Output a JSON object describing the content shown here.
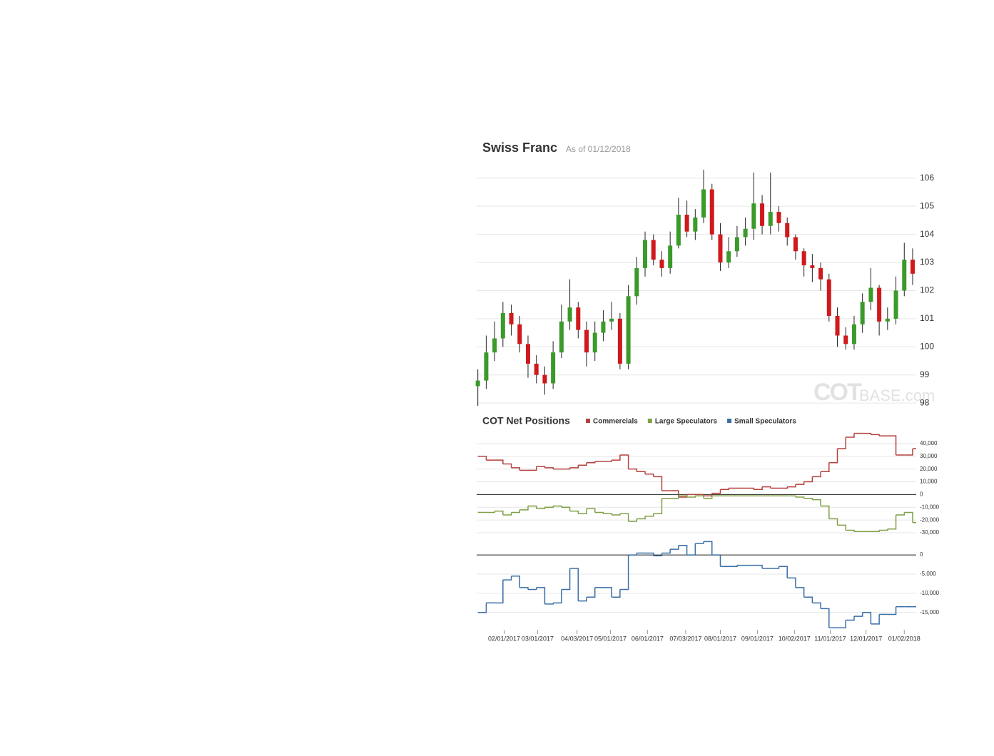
{
  "chart_data": [
    {
      "type": "candlestick",
      "title": "Swiss Franc",
      "subtitle": "As of 01/12/2018",
      "watermark": {
        "bold": "COT",
        "light": "BASE.com"
      },
      "up_color": "#3a9a2a",
      "down_color": "#d0191c",
      "grid": true,
      "xlim": [
        "2017-01-09",
        "2018-01-12"
      ],
      "x": [
        "2017-01-10",
        "2017-01-17",
        "2017-01-24",
        "2017-01-31",
        "2017-02-07",
        "2017-02-14",
        "2017-02-21",
        "2017-02-28",
        "2017-03-07",
        "2017-03-14",
        "2017-03-21",
        "2017-03-28",
        "2017-04-04",
        "2017-04-11",
        "2017-04-18",
        "2017-04-25",
        "2017-05-02",
        "2017-05-09",
        "2017-05-16",
        "2017-05-23",
        "2017-05-30",
        "2017-06-06",
        "2017-06-13",
        "2017-06-20",
        "2017-06-27",
        "2017-07-04",
        "2017-07-11",
        "2017-07-18",
        "2017-07-25",
        "2017-08-01",
        "2017-08-08",
        "2017-08-15",
        "2017-08-22",
        "2017-08-29",
        "2017-09-05",
        "2017-09-12",
        "2017-09-19",
        "2017-09-26",
        "2017-10-03",
        "2017-10-10",
        "2017-10-17",
        "2017-10-24",
        "2017-10-31",
        "2017-11-07",
        "2017-11-14",
        "2017-11-21",
        "2017-11-28",
        "2017-12-05",
        "2017-12-12",
        "2017-12-19",
        "2017-12-26",
        "2018-01-02",
        "2018-01-09"
      ],
      "open": [
        98.6,
        98.8,
        99.8,
        100.3,
        101.2,
        100.8,
        100.1,
        99.4,
        99.0,
        98.7,
        99.8,
        100.9,
        101.4,
        100.6,
        99.8,
        100.5,
        100.9,
        101.0,
        99.4,
        101.8,
        102.8,
        103.8,
        103.1,
        102.8,
        103.6,
        104.7,
        104.1,
        104.6,
        105.6,
        104.0,
        103.0,
        103.4,
        103.9,
        104.2,
        105.1,
        104.3,
        104.8,
        104.4,
        103.9,
        103.4,
        102.9,
        102.8,
        102.4,
        101.1,
        100.4,
        100.1,
        100.8,
        101.6,
        102.1,
        100.9,
        101.0,
        102.0,
        103.1
      ],
      "high": [
        99.2,
        100.4,
        100.9,
        101.6,
        101.5,
        101.1,
        100.4,
        99.7,
        99.3,
        100.2,
        101.5,
        102.4,
        101.6,
        100.9,
        100.9,
        101.3,
        101.6,
        101.2,
        102.2,
        103.2,
        104.1,
        104.0,
        103.4,
        104.1,
        105.3,
        105.2,
        104.9,
        106.3,
        105.8,
        104.4,
        103.9,
        104.3,
        104.6,
        106.2,
        105.4,
        106.2,
        105.0,
        104.6,
        104.0,
        103.5,
        103.3,
        103.0,
        102.6,
        101.4,
        100.7,
        101.1,
        101.9,
        102.8,
        102.2,
        101.4,
        102.5,
        103.7,
        103.5
      ],
      "low": [
        97.9,
        98.5,
        99.5,
        100.0,
        100.4,
        99.8,
        98.9,
        98.7,
        98.3,
        98.5,
        99.6,
        100.6,
        100.3,
        99.3,
        99.5,
        100.2,
        100.6,
        99.2,
        99.2,
        101.5,
        102.5,
        102.9,
        102.5,
        102.6,
        103.5,
        103.9,
        103.8,
        104.4,
        103.8,
        102.7,
        102.8,
        103.2,
        103.6,
        103.8,
        104.0,
        104.0,
        104.1,
        103.6,
        103.1,
        102.5,
        102.3,
        102.0,
        100.9,
        100.0,
        99.9,
        99.9,
        100.5,
        101.3,
        100.4,
        100.6,
        100.8,
        101.8,
        102.2
      ],
      "close": [
        98.8,
        99.8,
        100.3,
        101.2,
        100.8,
        100.1,
        99.4,
        99.0,
        98.7,
        99.8,
        100.9,
        101.4,
        100.6,
        99.8,
        100.5,
        100.9,
        101.0,
        99.4,
        101.8,
        102.8,
        103.8,
        103.1,
        102.8,
        103.6,
        104.7,
        104.1,
        104.6,
        105.6,
        104.0,
        103.0,
        103.4,
        103.9,
        104.2,
        105.1,
        104.3,
        104.8,
        104.4,
        103.9,
        103.4,
        102.9,
        102.8,
        102.4,
        101.1,
        100.4,
        100.1,
        100.8,
        101.6,
        102.1,
        100.9,
        101.0,
        102.0,
        103.1,
        102.6
      ],
      "ylim": [
        97.8,
        106.4
      ],
      "yticks": [
        98,
        99,
        100,
        101,
        102,
        103,
        104,
        105,
        106
      ]
    },
    {
      "type": "line",
      "step": true,
      "title": "COT Net Positions",
      "grid": true,
      "xlim": [
        "2017-01-09",
        "2018-01-12"
      ],
      "xticks": [
        {
          "value": "2017-02-01",
          "label": "02/01/2017"
        },
        {
          "value": "2017-03-01",
          "label": "03/01/2017"
        },
        {
          "value": "2017-04-03",
          "label": "04/03/2017"
        },
        {
          "value": "2017-05-01",
          "label": "05/01/2017"
        },
        {
          "value": "2017-06-01",
          "label": "06/01/2017"
        },
        {
          "value": "2017-07-03",
          "label": "07/03/2017"
        },
        {
          "value": "2017-08-01",
          "label": "08/01/2017"
        },
        {
          "value": "2017-09-01",
          "label": "09/01/2017"
        },
        {
          "value": "2017-10-02",
          "label": "10/02/2017"
        },
        {
          "value": "2017-11-01",
          "label": "11/01/2017"
        },
        {
          "value": "2017-12-01",
          "label": "12/01/2017"
        },
        {
          "value": "2018-01-02",
          "label": "01/02/2018"
        }
      ],
      "x": [
        "2017-01-10",
        "2017-01-17",
        "2017-01-24",
        "2017-01-31",
        "2017-02-07",
        "2017-02-14",
        "2017-02-21",
        "2017-02-28",
        "2017-03-07",
        "2017-03-14",
        "2017-03-21",
        "2017-03-28",
        "2017-04-04",
        "2017-04-11",
        "2017-04-18",
        "2017-04-25",
        "2017-05-02",
        "2017-05-09",
        "2017-05-16",
        "2017-05-23",
        "2017-05-30",
        "2017-06-06",
        "2017-06-13",
        "2017-06-20",
        "2017-06-27",
        "2017-07-04",
        "2017-07-11",
        "2017-07-18",
        "2017-07-25",
        "2017-08-01",
        "2017-08-08",
        "2017-08-15",
        "2017-08-22",
        "2017-08-29",
        "2017-09-05",
        "2017-09-12",
        "2017-09-19",
        "2017-09-26",
        "2017-10-03",
        "2017-10-10",
        "2017-10-17",
        "2017-10-24",
        "2017-10-31",
        "2017-11-07",
        "2017-11-14",
        "2017-11-21",
        "2017-11-28",
        "2017-12-05",
        "2017-12-12",
        "2017-12-19",
        "2017-12-26",
        "2018-01-02",
        "2018-01-09"
      ],
      "ylim": [
        -35000,
        50000
      ],
      "yticks": [
        {
          "value": 40000,
          "label": "40,000"
        },
        {
          "value": 30000,
          "label": "30,000"
        },
        {
          "value": 20000,
          "label": "20,000"
        },
        {
          "value": 10000,
          "label": "10,000"
        },
        0,
        {
          "value": -10000,
          "label": "-10,000"
        },
        {
          "value": -20000,
          "label": "-20,000"
        },
        {
          "value": -30000,
          "label": "-30,000"
        }
      ],
      "y2lim": [
        -21000,
        3000
      ],
      "y2ticks": [
        0,
        {
          "value": -5000,
          "label": "-5,000"
        },
        {
          "value": -10000,
          "label": "-10,000"
        },
        {
          "value": -15000,
          "label": "-15,000"
        }
      ],
      "series": [
        {
          "name": "Commercials",
          "color": "#b5413d",
          "values": [
            30000,
            27000,
            27000,
            24000,
            21000,
            19000,
            19000,
            22000,
            21000,
            20000,
            20000,
            21000,
            23000,
            25000,
            26000,
            26000,
            27000,
            31000,
            20000,
            18000,
            16000,
            14000,
            3000,
            3000,
            -2000,
            0,
            0,
            -1000,
            1000,
            4000,
            5000,
            5000,
            5000,
            4000,
            6000,
            5000,
            5000,
            6000,
            8000,
            10000,
            14000,
            18000,
            25000,
            36000,
            45000,
            48000,
            48000,
            47000,
            46000,
            46000,
            31000,
            31000,
            36000
          ]
        },
        {
          "name": "Large Speculators",
          "color": "#7fa046",
          "values": [
            -14000,
            -14000,
            -13000,
            -16000,
            -14000,
            -12000,
            -9000,
            -11000,
            -10000,
            -9000,
            -10000,
            -13000,
            -15000,
            -11000,
            -14000,
            -15000,
            -16000,
            -15000,
            -21000,
            -19000,
            -17000,
            -15000,
            -3000,
            -3000,
            -1000,
            -2000,
            -1000,
            -3000,
            -1000,
            -1000,
            -1000,
            -1000,
            -1000,
            -1000,
            -1000,
            -1000,
            -1000,
            -1000,
            -2000,
            -3000,
            -4000,
            -9000,
            -19000,
            -24000,
            -28000,
            -29000,
            -29000,
            -29000,
            -28000,
            -27000,
            -16000,
            -14000,
            -22000
          ]
        },
        {
          "name": "Small Speculators",
          "color": "#3b6ea5",
          "axis": "y2",
          "values": [
            -15000,
            -12500,
            -12500,
            -6500,
            -5500,
            -8500,
            -9000,
            -8500,
            -12800,
            -12500,
            -9000,
            -3500,
            -12000,
            -11000,
            -8500,
            -8500,
            -11000,
            -9000,
            0,
            500,
            500,
            -200,
            500,
            1500,
            2500,
            0,
            3000,
            3500,
            0,
            -3000,
            -3000,
            -2700,
            -2700,
            -2700,
            -3500,
            -3500,
            -3000,
            -6000,
            -8500,
            -11000,
            -12500,
            -14000,
            -19000,
            -19000,
            -17000,
            -16000,
            -15000,
            -18000,
            -15500,
            -15500,
            -13500,
            -13500,
            -13500
          ]
        }
      ]
    }
  ]
}
